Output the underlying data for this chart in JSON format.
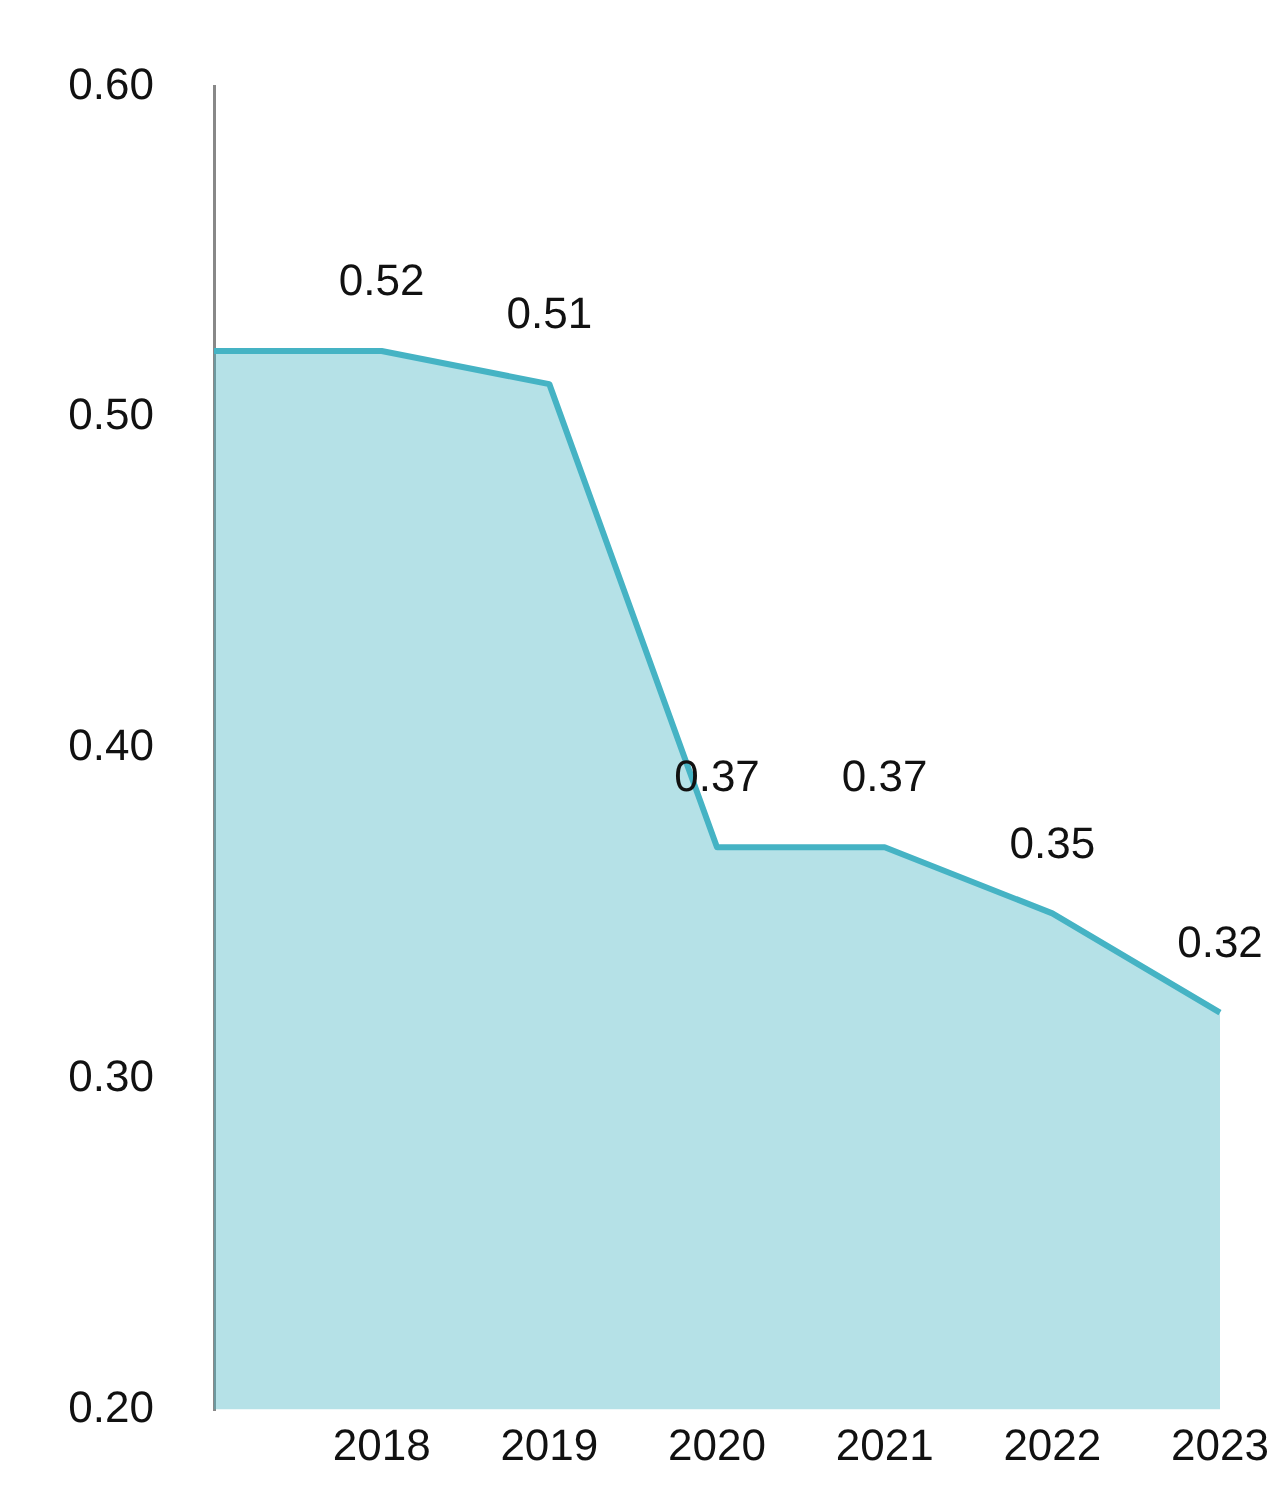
{
  "chart_data": {
    "type": "area",
    "categories": [
      null,
      "2018",
      "2019",
      "2020",
      "2021",
      "2022",
      "2023"
    ],
    "series": [
      {
        "color": "#45b3c4",
        "values": [
          0.52,
          0.52,
          0.51,
          0.37,
          0.37,
          0.35,
          0.32
        ],
        "value_labels": [
          null,
          "0.52",
          "0.51",
          "0.37",
          "0.37",
          "0.35",
          "0.32"
        ]
      }
    ],
    "ylim": [
      0.2,
      0.6
    ],
    "yticks": [
      {
        "value": 0.2,
        "label": "0.20"
      },
      {
        "value": 0.3,
        "label": "0.30"
      },
      {
        "value": 0.4,
        "label": "0.40"
      },
      {
        "value": 0.5,
        "label": "0.50"
      },
      {
        "value": 0.6,
        "label": "0.60"
      }
    ],
    "grid": false,
    "legend": false,
    "marker": "none"
  }
}
